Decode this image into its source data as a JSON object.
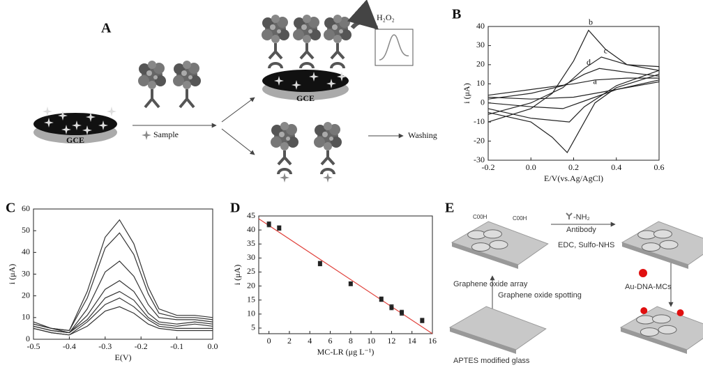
{
  "chart_data": [
    {
      "type": "line",
      "panel": "B",
      "xlabel": "E/V(vs.Ag/AgCl)",
      "ylabel": "i (μA)",
      "xlim": [
        -0.2,
        0.6
      ],
      "xticks": [
        -0.2,
        {
          "value": 0,
          "label": "0.0"
        },
        0.2,
        0.4,
        0.6
      ],
      "ylim": [
        -30,
        40
      ],
      "yticks": [
        -30,
        -20,
        -10,
        0,
        10,
        20,
        30,
        40
      ],
      "series": [
        {
          "name": "a",
          "color": "#222222",
          "x": [
            -0.2,
            0,
            0.2,
            0.3,
            0.45,
            0.6,
            0.6,
            0.4,
            0.2,
            0,
            -0.2
          ],
          "values": [
            4,
            7,
            10,
            12,
            13,
            13,
            11,
            7,
            3,
            2,
            3
          ]
        },
        {
          "name": "b",
          "color": "#222222",
          "x": [
            -0.2,
            0,
            0.1,
            0.2,
            0.27,
            0.35,
            0.45,
            0.6,
            0.6,
            0.4,
            0.3,
            0.2,
            0.17,
            0.1,
            0,
            -0.2
          ],
          "values": [
            -10,
            -3,
            5,
            22,
            38,
            28,
            20,
            17,
            15,
            8,
            0,
            -20,
            -26,
            -18,
            -10,
            -5
          ]
        },
        {
          "name": "c",
          "color": "#222222",
          "x": [
            -0.2,
            0,
            0.15,
            0.25,
            0.33,
            0.45,
            0.6,
            0.6,
            0.4,
            0.25,
            0.18,
            0,
            -0.2
          ],
          "values": [
            -6,
            0,
            8,
            18,
            24,
            20,
            19,
            17,
            9,
            -2,
            -10,
            -8,
            -3
          ]
        },
        {
          "name": "d",
          "color": "#222222",
          "x": [
            -0.2,
            0,
            0.15,
            0.25,
            0.32,
            0.45,
            0.6,
            0.6,
            0.4,
            0.25,
            0.15,
            0,
            -0.2
          ],
          "values": [
            2,
            5,
            9,
            15,
            18,
            16,
            14,
            12,
            7,
            1,
            -3,
            -2,
            0
          ]
        }
      ]
    },
    {
      "type": "line",
      "panel": "C",
      "xlabel": "E(V)",
      "ylabel": "i (μA)",
      "xlim": [
        -0.5,
        0
      ],
      "xticks": [
        -0.5,
        -0.4,
        -0.3,
        -0.2,
        -0.1,
        {
          "value": 0,
          "label": "0.0"
        }
      ],
      "ylim": [
        0,
        60
      ],
      "yticks": [
        0,
        10,
        20,
        30,
        40,
        50,
        60
      ],
      "x": [
        -0.5,
        -0.45,
        -0.4,
        -0.35,
        -0.3,
        -0.26,
        -0.22,
        -0.18,
        -0.15,
        -0.1,
        -0.05,
        0
      ],
      "series": [
        {
          "color": "#333333",
          "values": [
            8,
            5,
            4,
            22,
            47,
            55,
            44,
            24,
            14,
            11,
            11,
            10
          ]
        },
        {
          "color": "#333333",
          "values": [
            7,
            5,
            4,
            19,
            42,
            49,
            39,
            21,
            12,
            10,
            10,
            9
          ]
        },
        {
          "color": "#333333",
          "values": [
            7,
            5,
            3,
            14,
            31,
            36,
            29,
            16,
            10,
            9,
            9,
            8
          ]
        },
        {
          "color": "#333333",
          "values": [
            6,
            4,
            3,
            11,
            23,
            27,
            22,
            12,
            8,
            7,
            8,
            7
          ]
        },
        {
          "color": "#333333",
          "values": [
            6,
            4,
            3,
            9,
            19,
            22,
            18,
            10,
            7,
            6,
            7,
            6
          ]
        },
        {
          "color": "#333333",
          "values": [
            5,
            3,
            2,
            8,
            16,
            19,
            15,
            9,
            6,
            5,
            5,
            5
          ]
        },
        {
          "color": "#333333",
          "values": [
            5,
            3,
            2,
            6,
            13,
            15,
            12,
            7,
            5,
            4,
            4,
            4
          ]
        }
      ]
    },
    {
      "type": "scatter",
      "panel": "D",
      "xlabel": "MC-LR (μg L⁻¹)",
      "ylabel": "i (μA)",
      "xlim": [
        -1,
        16
      ],
      "xticks": [
        0,
        2,
        4,
        6,
        8,
        10,
        12,
        14,
        16
      ],
      "ylim": [
        3,
        45
      ],
      "yticks": [
        5,
        10,
        15,
        20,
        25,
        30,
        35,
        40,
        45
      ],
      "color": "#222222",
      "x": [
        0,
        1,
        5,
        8,
        11,
        12,
        13,
        15
      ],
      "values": [
        42,
        40.7,
        28,
        20.8,
        15.3,
        12.4,
        10.5,
        7.7
      ],
      "errors": [
        0.9,
        0.8,
        0.8,
        0.7,
        0.8,
        0.9,
        0.9,
        0.8
      ],
      "fit": {
        "color": "#e0403a",
        "x": [
          -1,
          16
        ],
        "values": [
          44,
          3
        ]
      }
    }
  ],
  "panel_a": {
    "letter": "A",
    "electrode_1": "GCE",
    "step": "Sample",
    "electrode_2": "GCE",
    "substrate": "H₂O₂",
    "step_2": "Washing"
  },
  "panel_e": {
    "letter": "E",
    "group_1": "C00H",
    "group_2": "C00H",
    "reagent": "-NH₂",
    "reagent_name": "Antibody",
    "coupling": "EDC, Sulfo-NHS",
    "array": "Graphene oxide array",
    "spotting": "Graphene oxide spotting",
    "glass": "APTES modified glass",
    "probe": "Au-DNA-MCs"
  }
}
